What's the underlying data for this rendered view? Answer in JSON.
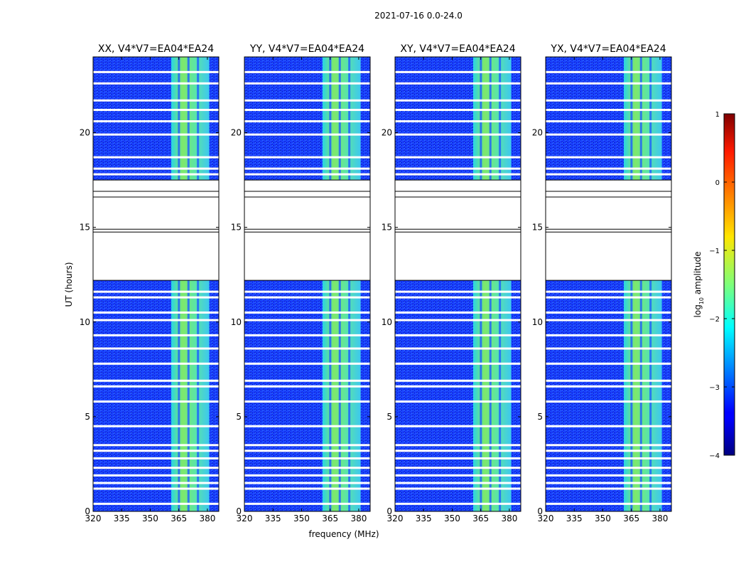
{
  "chart_data": {
    "type": "heatmap",
    "suptitle": "2021-07-16 0.0-24.0",
    "xlabel": "frequency (MHz)",
    "ylabel": "UT (hours)",
    "xlim": [
      320,
      386
    ],
    "ylim": [
      0,
      24
    ],
    "x_ticks": [
      320,
      335,
      350,
      365,
      380
    ],
    "y_ticks": [
      0,
      5,
      10,
      15,
      20
    ],
    "panels": [
      {
        "title": "XX, V4*V7=EA04*EA24"
      },
      {
        "title": "YY, V4*V7=EA04*EA24"
      },
      {
        "title": "XY, V4*V7=EA04*EA24"
      },
      {
        "title": "YX, V4*V7=EA04*EA24"
      }
    ],
    "colorbar": {
      "label": "log10 amplitude",
      "label_main": "log",
      "label_sub": "10",
      "label_tail": " amplitude",
      "range": [
        -4,
        1
      ],
      "ticks": [
        "1",
        "0",
        "−1",
        "−2",
        "−3",
        "−4"
      ],
      "tick_values": [
        1,
        0,
        -1,
        -2,
        -3,
        -4
      ],
      "colormap": "jet"
    },
    "no_data_intervals_hours": [
      [
        12.2,
        17.5
      ]
    ],
    "bright_band_mhz": [
      361,
      381
    ],
    "gap_lines_hours": [
      0.4,
      1.2,
      1.5,
      1.9,
      2.3,
      2.8,
      3.2,
      3.5,
      4.5,
      5.8,
      6.6,
      6.9,
      7.8,
      8.6,
      9.3,
      10.1,
      10.5,
      11.3,
      11.6,
      17.8,
      18.1,
      18.7,
      19.9,
      20.6,
      21.2,
      21.7,
      22.6,
      23.2
    ],
    "band_column_lines_mhz": [
      364.5,
      369.5,
      374.5
    ]
  }
}
